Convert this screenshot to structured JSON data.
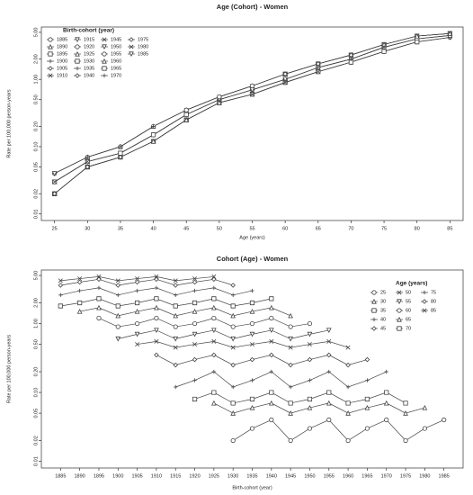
{
  "chart_data": [
    {
      "type": "line",
      "title": "Age (Cohort) - Women",
      "x_label": "Age (years)",
      "y_label": "Rate per 100,000 person-years",
      "legend_title": "Birth-cohort (year)",
      "log_y": true,
      "color": "#444",
      "x": [
        25,
        30,
        35,
        40,
        45,
        50,
        55,
        60,
        65,
        70,
        75,
        80,
        85
      ],
      "xlim": [
        23,
        87
      ],
      "xticks": [
        25,
        30,
        35,
        40,
        45,
        50,
        55,
        60,
        65,
        70,
        75,
        80,
        85
      ],
      "ylim": [
        0.008,
        6
      ],
      "yticks": [
        {
          "value": 0.01,
          "label": "0.01"
        },
        {
          "value": 0.02,
          "label": "0.02"
        },
        {
          "value": 0.05,
          "label": "0.05"
        },
        {
          "value": 0.1,
          "label": "0.10"
        },
        {
          "value": 0.2,
          "label": "0.20"
        },
        {
          "value": 0.5,
          "label": "0.50"
        },
        {
          "value": 1,
          "label": "1.00"
        },
        {
          "value": 2,
          "label": "2.00"
        },
        {
          "value": 5,
          "label": "5.00"
        }
      ],
      "series": [
        {
          "name": "1885",
          "values": [
            null,
            null,
            null,
            null,
            null,
            null,
            null,
            null,
            null,
            1.8,
            2.6,
            3.6,
            4.2
          ]
        },
        {
          "name": "1890",
          "values": [
            null,
            null,
            null,
            null,
            null,
            null,
            null,
            null,
            1.5,
            2,
            3,
            4,
            4.5
          ]
        },
        {
          "name": "1895",
          "values": [
            null,
            null,
            null,
            null,
            null,
            null,
            null,
            1.2,
            1.7,
            2.3,
            3.3,
            4.4,
            4.8
          ]
        },
        {
          "name": "1900",
          "values": [
            null,
            null,
            null,
            null,
            null,
            null,
            0.6,
            0.9,
            1.3,
            1.8,
            2.6,
            3.6,
            4.2
          ]
        },
        {
          "name": "1905",
          "values": [
            null,
            null,
            null,
            null,
            null,
            0.5,
            0.7,
            1,
            1.5,
            2,
            3,
            4,
            4.5
          ]
        },
        {
          "name": "1910",
          "values": [
            null,
            null,
            null,
            null,
            0.35,
            0.55,
            0.8,
            1.2,
            1.7,
            2.3,
            3.3,
            4.4,
            4.8
          ]
        },
        {
          "name": "1915",
          "values": [
            null,
            null,
            null,
            0.12,
            0.25,
            0.45,
            0.6,
            0.9,
            1.3,
            1.8,
            2.6,
            3.6,
            4.2
          ]
        },
        {
          "name": "1920",
          "values": [
            null,
            null,
            0.08,
            0.15,
            0.3,
            0.5,
            0.7,
            1,
            1.5,
            2,
            3,
            4,
            4.5
          ]
        },
        {
          "name": "1925",
          "values": [
            null,
            0.07,
            0.1,
            0.2,
            0.35,
            0.55,
            0.8,
            1.2,
            1.7,
            2.3,
            3.3,
            4.4,
            4.8
          ]
        },
        {
          "name": "1930",
          "values": [
            0.02,
            0.05,
            0.07,
            0.12,
            0.25,
            0.45,
            0.6,
            0.9,
            1.3,
            1.8,
            2.6,
            3.6,
            null
          ]
        },
        {
          "name": "1935",
          "values": [
            0.03,
            0.06,
            0.08,
            0.15,
            0.3,
            0.5,
            0.7,
            1,
            1.5,
            2,
            3,
            null,
            null
          ]
        },
        {
          "name": "1940",
          "values": [
            0.04,
            0.07,
            0.1,
            0.2,
            0.35,
            0.55,
            0.8,
            1.2,
            1.7,
            2.3,
            null,
            null,
            null
          ]
        },
        {
          "name": "1945",
          "values": [
            0.02,
            0.05,
            0.07,
            0.12,
            0.25,
            0.45,
            0.6,
            0.9,
            1.3,
            null,
            null,
            null,
            null
          ]
        },
        {
          "name": "1950",
          "values": [
            0.03,
            0.06,
            0.08,
            0.15,
            0.3,
            0.5,
            0.7,
            1,
            null,
            null,
            null,
            null,
            null
          ]
        },
        {
          "name": "1955",
          "values": [
            0.04,
            0.07,
            0.1,
            0.2,
            0.35,
            0.55,
            0.8,
            null,
            null,
            null,
            null,
            null,
            null
          ]
        },
        {
          "name": "1960",
          "values": [
            0.02,
            0.05,
            0.07,
            0.12,
            0.25,
            0.45,
            null,
            null,
            null,
            null,
            null,
            null,
            null
          ]
        },
        {
          "name": "1965",
          "values": [
            0.03,
            0.06,
            0.08,
            0.15,
            0.3,
            null,
            null,
            null,
            null,
            null,
            null,
            null,
            null
          ]
        },
        {
          "name": "1970",
          "values": [
            0.04,
            0.07,
            0.1,
            0.2,
            null,
            null,
            null,
            null,
            null,
            null,
            null,
            null,
            null
          ]
        },
        {
          "name": "1975",
          "values": [
            0.02,
            0.05,
            0.07,
            null,
            null,
            null,
            null,
            null,
            null,
            null,
            null,
            null,
            null
          ]
        },
        {
          "name": "1980",
          "values": [
            0.03,
            0.06,
            null,
            null,
            null,
            null,
            null,
            null,
            null,
            null,
            null,
            null,
            null
          ]
        },
        {
          "name": "1985",
          "values": [
            0.04,
            null,
            null,
            null,
            null,
            null,
            null,
            null,
            null,
            null,
            null,
            null,
            null
          ]
        }
      ]
    },
    {
      "type": "line",
      "title": "Cohort (Age) - Women",
      "x_label": "Birth-cohort (year)",
      "y_label": "Rate per 100,000 person-years",
      "legend_title": "Age (years)",
      "log_y": true,
      "color": "#444",
      "x": [
        1885,
        1890,
        1895,
        1900,
        1905,
        1910,
        1915,
        1920,
        1925,
        1930,
        1935,
        1940,
        1945,
        1950,
        1955,
        1960,
        1965,
        1970,
        1975,
        1980,
        1985
      ],
      "xlim": [
        1880,
        1990
      ],
      "xticks": [
        1885,
        1890,
        1895,
        1900,
        1905,
        1910,
        1915,
        1920,
        1925,
        1930,
        1935,
        1940,
        1945,
        1950,
        1955,
        1960,
        1965,
        1970,
        1975,
        1980,
        1985
      ],
      "ylim": [
        0.008,
        6
      ],
      "yticks": [
        {
          "value": 0.01,
          "label": "0.01"
        },
        {
          "value": 0.02,
          "label": "0.02"
        },
        {
          "value": 0.05,
          "label": "0.05"
        },
        {
          "value": 0.1,
          "label": "0.10"
        },
        {
          "value": 0.2,
          "label": "0.20"
        },
        {
          "value": 0.5,
          "label": "0.50"
        },
        {
          "value": 1,
          "label": "1.00"
        },
        {
          "value": 2,
          "label": "2.00"
        },
        {
          "value": 5,
          "label": "5.00"
        }
      ],
      "series": [
        {
          "name": "25",
          "values": [
            null,
            null,
            null,
            null,
            null,
            null,
            null,
            null,
            null,
            0.02,
            0.03,
            0.04,
            0.02,
            0.03,
            0.04,
            0.02,
            0.03,
            0.04,
            0.02,
            0.03,
            0.04
          ]
        },
        {
          "name": "30",
          "values": [
            null,
            null,
            null,
            null,
            null,
            null,
            null,
            null,
            0.07,
            0.05,
            0.06,
            0.07,
            0.05,
            0.06,
            0.07,
            0.05,
            0.06,
            0.07,
            0.05,
            0.06,
            null
          ]
        },
        {
          "name": "35",
          "values": [
            null,
            null,
            null,
            null,
            null,
            null,
            null,
            0.08,
            0.1,
            0.07,
            0.08,
            0.1,
            0.07,
            0.08,
            0.1,
            0.07,
            0.08,
            0.1,
            0.07,
            null,
            null
          ]
        },
        {
          "name": "40",
          "values": [
            null,
            null,
            null,
            null,
            null,
            null,
            0.12,
            0.15,
            0.2,
            0.12,
            0.15,
            0.2,
            0.12,
            0.15,
            0.2,
            0.12,
            0.15,
            0.2,
            null,
            null,
            null
          ]
        },
        {
          "name": "45",
          "values": [
            null,
            null,
            null,
            null,
            null,
            0.35,
            0.25,
            0.3,
            0.35,
            0.25,
            0.3,
            0.35,
            0.25,
            0.3,
            0.35,
            0.25,
            0.3,
            null,
            null,
            null,
            null
          ]
        },
        {
          "name": "50",
          "values": [
            null,
            null,
            null,
            null,
            0.5,
            0.55,
            0.45,
            0.5,
            0.55,
            0.45,
            0.5,
            0.55,
            0.45,
            0.5,
            0.55,
            0.45,
            null,
            null,
            null,
            null,
            null
          ]
        },
        {
          "name": "55",
          "values": [
            null,
            null,
            null,
            0.6,
            0.7,
            0.8,
            0.6,
            0.7,
            0.8,
            0.6,
            0.7,
            0.8,
            0.6,
            0.7,
            0.8,
            null,
            null,
            null,
            null,
            null,
            null
          ]
        },
        {
          "name": "60",
          "values": [
            null,
            null,
            1.2,
            0.9,
            1,
            1.2,
            0.9,
            1,
            1.2,
            0.9,
            1,
            1.2,
            0.9,
            1,
            null,
            null,
            null,
            null,
            null,
            null,
            null
          ]
        },
        {
          "name": "65",
          "values": [
            null,
            1.5,
            1.7,
            1.3,
            1.5,
            1.7,
            1.3,
            1.5,
            1.7,
            1.3,
            1.5,
            1.7,
            1.3,
            null,
            null,
            null,
            null,
            null,
            null,
            null,
            null
          ]
        },
        {
          "name": "70",
          "values": [
            1.8,
            2,
            2.3,
            1.8,
            2,
            2.3,
            1.8,
            2,
            2.3,
            1.8,
            2,
            2.3,
            null,
            null,
            null,
            null,
            null,
            null,
            null,
            null,
            null
          ]
        },
        {
          "name": "75",
          "values": [
            2.6,
            3,
            3.3,
            2.6,
            3,
            3.3,
            2.6,
            3,
            3.3,
            2.6,
            3,
            null,
            null,
            null,
            null,
            null,
            null,
            null,
            null,
            null,
            null
          ]
        },
        {
          "name": "80",
          "values": [
            3.6,
            4,
            4.4,
            3.6,
            4,
            4.4,
            3.6,
            4,
            4.4,
            3.6,
            null,
            null,
            null,
            null,
            null,
            null,
            null,
            null,
            null,
            null,
            null
          ]
        },
        {
          "name": "85",
          "values": [
            4.2,
            4.5,
            4.8,
            4.2,
            4.5,
            4.8,
            4.2,
            4.5,
            4.8,
            null,
            null,
            null,
            null,
            null,
            null,
            null,
            null,
            null,
            null,
            null,
            null
          ]
        }
      ]
    }
  ]
}
